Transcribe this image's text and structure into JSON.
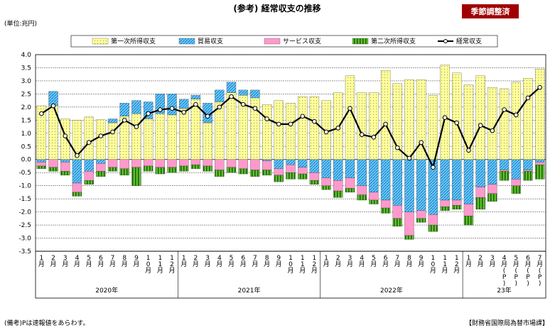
{
  "header": {
    "title": "(参考) 経常収支の推移",
    "badge": "季節調整済",
    "unit": "(単位:兆円)"
  },
  "footer": {
    "note": "(備考)Pは速報値をあらわす。",
    "source": "【財務省国際局為替市場課】"
  },
  "chart_data": {
    "type": "stacked-bar-line",
    "categories": [
      "1月",
      "2月",
      "3月",
      "4月",
      "5月",
      "6月",
      "7月",
      "8月",
      "9月",
      "10月",
      "11月",
      "12月",
      "1月",
      "2月",
      "3月",
      "4月",
      "5月",
      "6月",
      "7月",
      "8月",
      "9月",
      "10月",
      "11月",
      "12月",
      "1月",
      "2月",
      "3月",
      "4月",
      "5月",
      "6月",
      "7月",
      "8月",
      "9月",
      "10月",
      "11月",
      "12月",
      "1月",
      "2月",
      "3月",
      "4月(P)",
      "5月(P)",
      "6月(P)",
      "7月(P)"
    ],
    "years": [
      "2020年",
      "2021年",
      "2022年",
      "23年"
    ],
    "ylim": [
      -3.5,
      4.0
    ],
    "yticks": [
      {
        "value": -3.5,
        "label": "-3.5"
      },
      {
        "value": -3,
        "label": "-3.0"
      },
      -2.5,
      {
        "value": -2,
        "label": "-2.0"
      },
      -1.5,
      {
        "value": -1,
        "label": "-1.0"
      },
      -0.5,
      {
        "value": 0,
        "label": "0.0"
      },
      0.5,
      {
        "value": 1,
        "label": "1.0"
      },
      1.5,
      {
        "value": 2,
        "label": "2.0"
      },
      2.5,
      {
        "value": 3,
        "label": "3.0"
      },
      3.5,
      {
        "value": 4,
        "label": "4.0"
      }
    ],
    "grid": true,
    "series": [
      {
        "name": "第一次所得収支",
        "color": "#ffff99",
        "values": [
          2.05,
          2.05,
          1.55,
          1.5,
          1.62,
          1.52,
          1.4,
          1.65,
          1.75,
          1.55,
          1.75,
          1.7,
          1.95,
          2.3,
          1.4,
          2.2,
          2.55,
          2.45,
          2.35,
          2.1,
          2.25,
          2.15,
          2.4,
          2.4,
          2.25,
          2.55,
          3.2,
          2.55,
          2.55,
          3.4,
          2.9,
          3.05,
          3.05,
          2.45,
          3.6,
          3.3,
          2.85,
          3.2,
          2.75,
          2.7,
          2.95,
          3.1,
          3.45
        ]
      },
      {
        "name": "貿易収支",
        "color": "#66ccff",
        "values": [
          -0.1,
          0.55,
          -0.1,
          -0.9,
          -0.45,
          -0.15,
          0.15,
          0.5,
          0.5,
          0.65,
          0.75,
          0.8,
          0.35,
          0.15,
          0.75,
          0.45,
          0.4,
          0.2,
          0.3,
          -0.05,
          -0.35,
          -0.2,
          -0.3,
          -0.5,
          -0.7,
          -0.8,
          -0.7,
          -1.0,
          -1.25,
          -1.55,
          -1.75,
          -2.0,
          -1.95,
          -2.1,
          -1.55,
          -1.55,
          -1.7,
          -1.05,
          -0.95,
          -0.4,
          -0.75,
          -0.4,
          -0.1
        ]
      },
      {
        "name": "サービス収支",
        "color": "#ff99cc",
        "values": [
          -0.15,
          -0.3,
          -0.35,
          -0.35,
          -0.35,
          -0.3,
          -0.3,
          -0.35,
          -0.3,
          -0.25,
          -0.3,
          -0.3,
          -0.25,
          -0.2,
          -0.25,
          -0.4,
          -0.3,
          -0.35,
          -0.4,
          -0.35,
          -0.25,
          -0.3,
          -0.25,
          -0.3,
          -0.3,
          -0.4,
          -0.4,
          -0.35,
          -0.3,
          -0.3,
          -0.5,
          -0.9,
          -0.3,
          -0.4,
          -0.25,
          -0.2,
          -0.45,
          -0.4,
          -0.35,
          -0.05,
          -0.25,
          -0.05,
          -0.1
        ]
      },
      {
        "name": "第二次所得収支",
        "color": "#66bb33",
        "values": [
          -0.1,
          -0.15,
          -0.15,
          -0.15,
          -0.15,
          -0.2,
          -0.15,
          -0.25,
          -0.7,
          -0.2,
          -0.25,
          -0.2,
          -0.2,
          -0.15,
          -0.2,
          -0.25,
          -0.2,
          -0.2,
          -0.25,
          -0.2,
          -0.25,
          -0.25,
          -0.2,
          -0.15,
          -0.15,
          -0.25,
          -0.15,
          -0.2,
          -0.15,
          -0.2,
          -0.3,
          -0.15,
          -0.15,
          -0.25,
          -0.15,
          -0.15,
          -0.35,
          -0.45,
          -0.3,
          -0.35,
          -0.3,
          -0.35,
          -0.55
        ]
      },
      {
        "name": "経常収支",
        "color": "#000000",
        "kind": "line",
        "values": [
          1.75,
          2.05,
          0.9,
          0.15,
          0.65,
          0.9,
          1.05,
          1.5,
          1.25,
          1.75,
          1.9,
          1.95,
          1.8,
          2.1,
          1.65,
          2.0,
          2.4,
          2.1,
          1.95,
          1.55,
          1.35,
          1.35,
          1.65,
          1.45,
          1.05,
          1.2,
          1.95,
          0.95,
          0.85,
          1.35,
          0.45,
          0.05,
          0.65,
          -0.3,
          1.6,
          1.4,
          0.35,
          1.3,
          1.1,
          1.9,
          1.7,
          2.35,
          2.75
        ]
      }
    ]
  }
}
